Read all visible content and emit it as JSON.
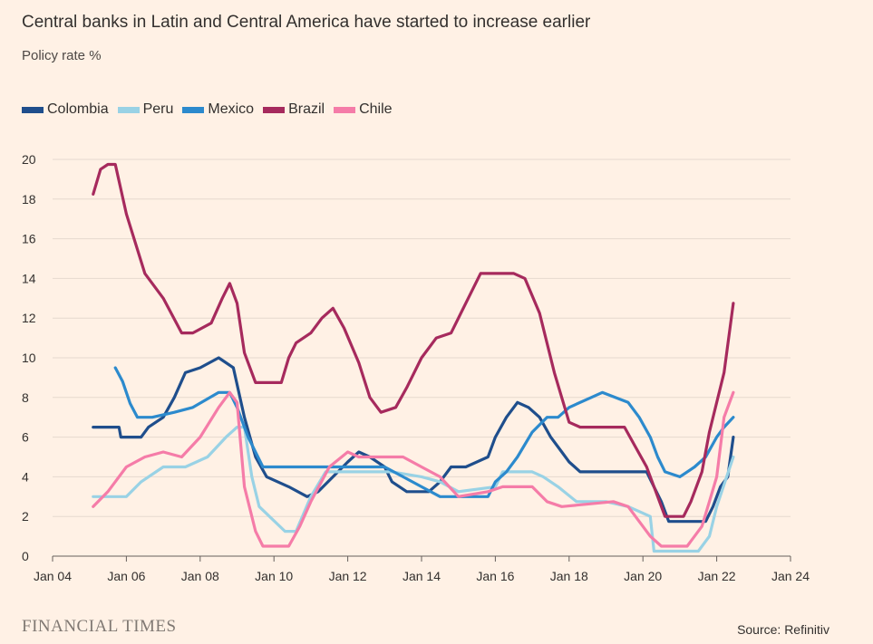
{
  "chart_data": {
    "type": "line",
    "title": "Central banks in Latin and Central America have started to increase earlier",
    "subtitle": "Policy rate %",
    "ylim": [
      0,
      20
    ],
    "y_ticks": [
      "0",
      "2",
      "4",
      "6",
      "8",
      "10",
      "12",
      "14",
      "16",
      "18",
      "20"
    ],
    "x_tick_values": [
      2004,
      2006,
      2008,
      2010,
      2012,
      2014,
      2016,
      2018,
      2020,
      2022,
      2024
    ],
    "x_tick_labels": [
      "Jan 04",
      "Jan 06",
      "Jan 08",
      "Jan 10",
      "Jan 12",
      "Jan 14",
      "Jan 16",
      "Jan 18",
      "Jan 20",
      "Jan 22",
      "Jan 24"
    ],
    "series": [
      {
        "name": "Colombia",
        "color": "#1F4E8C",
        "x": [
          2005.1,
          2005.8,
          2005.85,
          2006.4,
          2006.6,
          2007.0,
          2007.3,
          2007.6,
          2008.0,
          2008.5,
          2008.9,
          2009.2,
          2009.5,
          2009.8,
          2010.4,
          2010.9,
          2011.2,
          2011.6,
          2012.0,
          2012.3,
          2012.6,
          2013.0,
          2013.2,
          2013.6,
          2014.2,
          2014.5,
          2014.8,
          2015.2,
          2015.8,
          2016.0,
          2016.3,
          2016.6,
          2016.9,
          2017.2,
          2017.5,
          2017.8,
          2018.0,
          2018.3,
          2019.0,
          2020.1,
          2020.3,
          2020.5,
          2020.7,
          2021.0,
          2021.7,
          2021.9,
          2022.1,
          2022.3,
          2022.45
        ],
        "values": [
          6.5,
          6.5,
          6.0,
          6.0,
          6.5,
          7.0,
          8.0,
          9.25,
          9.5,
          10.0,
          9.5,
          7.0,
          5.0,
          4.0,
          3.5,
          3.0,
          3.25,
          4.0,
          4.75,
          5.25,
          5.0,
          4.5,
          3.75,
          3.25,
          3.25,
          3.75,
          4.5,
          4.5,
          5.0,
          6.0,
          7.0,
          7.75,
          7.5,
          7.0,
          6.0,
          5.25,
          4.75,
          4.25,
          4.25,
          4.25,
          3.5,
          2.75,
          1.75,
          1.75,
          1.75,
          2.5,
          3.5,
          4.0,
          6.0
        ]
      },
      {
        "name": "Peru",
        "color": "#99D2E5",
        "x": [
          2005.1,
          2006.0,
          2006.4,
          2007.0,
          2007.6,
          2008.2,
          2008.7,
          2009.0,
          2009.2,
          2009.4,
          2009.6,
          2010.3,
          2010.6,
          2011.0,
          2011.4,
          2011.8,
          2012.5,
          2013.2,
          2014.0,
          2014.5,
          2015.0,
          2016.0,
          2016.2,
          2017.0,
          2017.3,
          2017.7,
          2018.2,
          2019.0,
          2019.6,
          2019.9,
          2020.2,
          2020.3,
          2021.0,
          2021.5,
          2021.8,
          2022.0,
          2022.45
        ],
        "values": [
          3.0,
          3.0,
          3.75,
          4.5,
          4.5,
          5.0,
          6.0,
          6.5,
          6.5,
          4.0,
          2.5,
          1.25,
          1.25,
          3.0,
          4.25,
          4.25,
          4.25,
          4.25,
          4.0,
          3.75,
          3.25,
          3.5,
          4.25,
          4.25,
          4.0,
          3.5,
          2.75,
          2.75,
          2.5,
          2.25,
          2.0,
          0.25,
          0.25,
          0.25,
          1.0,
          2.5,
          5.0
        ]
      },
      {
        "name": "Mexico",
        "color": "#2C8ACD",
        "x": [
          2005.7,
          2005.9,
          2006.1,
          2006.3,
          2006.7,
          2007.3,
          2007.8,
          2008.5,
          2008.8,
          2009.0,
          2009.3,
          2009.7,
          2010.2,
          2013.0,
          2013.5,
          2014.0,
          2014.5,
          2015.8,
          2016.0,
          2016.3,
          2016.6,
          2017.0,
          2017.4,
          2017.7,
          2018.0,
          2018.6,
          2018.9,
          2019.6,
          2019.9,
          2020.2,
          2020.4,
          2020.6,
          2021.0,
          2021.4,
          2021.7,
          2022.0,
          2022.2,
          2022.45
        ],
        "values": [
          9.5,
          8.8,
          7.7,
          7.0,
          7.0,
          7.25,
          7.5,
          8.25,
          8.25,
          7.5,
          6.0,
          4.5,
          4.5,
          4.5,
          4.0,
          3.5,
          3.0,
          3.0,
          3.75,
          4.25,
          5.0,
          6.25,
          7.0,
          7.0,
          7.5,
          8.0,
          8.25,
          7.75,
          7.0,
          6.0,
          5.0,
          4.25,
          4.0,
          4.5,
          5.0,
          6.0,
          6.5,
          7.0
        ]
      },
      {
        "name": "Brazil",
        "color": "#A62A5D",
        "x": [
          2005.1,
          2005.3,
          2005.5,
          2005.7,
          2006.0,
          2006.5,
          2007.0,
          2007.5,
          2007.8,
          2008.3,
          2008.6,
          2008.8,
          2009.0,
          2009.2,
          2009.5,
          2010.2,
          2010.4,
          2010.6,
          2011.0,
          2011.3,
          2011.6,
          2011.9,
          2012.3,
          2012.6,
          2012.9,
          2013.3,
          2013.6,
          2014.0,
          2014.4,
          2014.8,
          2015.2,
          2015.6,
          2016.0,
          2016.5,
          2016.8,
          2017.2,
          2017.6,
          2018.0,
          2018.3,
          2019.5,
          2019.8,
          2020.1,
          2020.4,
          2020.6,
          2021.1,
          2021.3,
          2021.6,
          2021.8,
          2022.0,
          2022.2,
          2022.45
        ],
        "values": [
          18.25,
          19.5,
          19.75,
          19.75,
          17.25,
          14.25,
          13.0,
          11.25,
          11.25,
          11.75,
          13.0,
          13.75,
          12.75,
          10.25,
          8.75,
          8.75,
          10.0,
          10.75,
          11.25,
          12.0,
          12.5,
          11.5,
          9.75,
          8.0,
          7.25,
          7.5,
          8.5,
          10.0,
          11.0,
          11.25,
          12.75,
          14.25,
          14.25,
          14.25,
          14.0,
          12.25,
          9.25,
          6.75,
          6.5,
          6.5,
          5.5,
          4.5,
          3.0,
          2.0,
          2.0,
          2.75,
          4.25,
          6.25,
          7.75,
          9.25,
          12.75
        ]
      },
      {
        "name": "Chile",
        "color": "#F57CA8",
        "x": [
          2005.1,
          2005.5,
          2006.0,
          2006.5,
          2007.0,
          2007.5,
          2008.0,
          2008.5,
          2008.8,
          2009.0,
          2009.2,
          2009.5,
          2009.7,
          2010.4,
          2010.7,
          2011.0,
          2011.5,
          2012.0,
          2012.3,
          2012.8,
          2013.5,
          2014.0,
          2014.5,
          2015.0,
          2015.8,
          2016.2,
          2017.0,
          2017.4,
          2017.8,
          2019.2,
          2019.6,
          2019.9,
          2020.2,
          2020.5,
          2021.2,
          2021.6,
          2021.8,
          2022.0,
          2022.2,
          2022.45
        ],
        "values": [
          2.5,
          3.25,
          4.5,
          5.0,
          5.25,
          5.0,
          6.0,
          7.5,
          8.25,
          7.75,
          3.5,
          1.25,
          0.5,
          0.5,
          1.5,
          2.75,
          4.5,
          5.25,
          5.0,
          5.0,
          5.0,
          4.5,
          4.0,
          3.0,
          3.25,
          3.5,
          3.5,
          2.75,
          2.5,
          2.75,
          2.5,
          1.75,
          1.0,
          0.5,
          0.5,
          1.5,
          2.75,
          4.0,
          7.0,
          8.25
        ]
      }
    ]
  },
  "source": "Source: Refinitiv",
  "brand": "FINANCIAL TIMES"
}
